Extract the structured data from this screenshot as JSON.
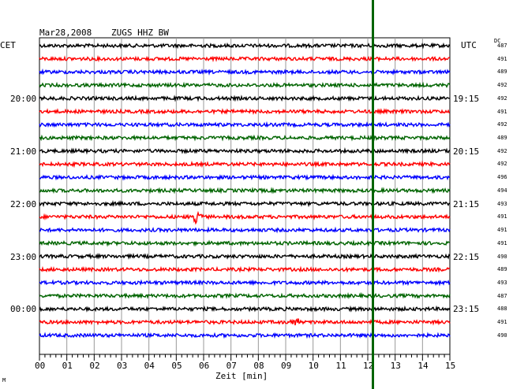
{
  "header": {
    "date": "Mar28,2008",
    "station": "ZUGS HHZ BW",
    "left_tz": "CET",
    "right_tz": "UTC",
    "dc_label": "DC",
    "corner_mark": "M"
  },
  "chart_data": {
    "type": "line",
    "title": "Mar28,2008   ZUGS HHZ BW",
    "xlabel": "Zeit [min]",
    "x_range": [
      0,
      15
    ],
    "x_ticks": [
      "00",
      "01",
      "02",
      "03",
      "04",
      "05",
      "06",
      "07",
      "08",
      "09",
      "10",
      "11",
      "12",
      "13",
      "14",
      "15"
    ],
    "trace_colors": [
      "#000000",
      "#ff0000",
      "#0000ff",
      "#006400"
    ],
    "rows_per_hour": 4,
    "row_count": 23,
    "left_time_labels": [
      {
        "row": 4,
        "label": "20:00"
      },
      {
        "row": 8,
        "label": "21:00"
      },
      {
        "row": 12,
        "label": "22:00"
      },
      {
        "row": 16,
        "label": "23:00"
      },
      {
        "row": 20,
        "label": "00:00"
      }
    ],
    "right_time_labels": [
      {
        "row": 4,
        "label": "19:15"
      },
      {
        "row": 8,
        "label": "20:15"
      },
      {
        "row": 12,
        "label": "21:15"
      },
      {
        "row": 16,
        "label": "22:15"
      },
      {
        "row": 20,
        "label": "23:15"
      }
    ],
    "dc_values": [
      "487",
      "491",
      "489",
      "492",
      "492",
      "491",
      "492",
      "489",
      "492",
      "492",
      "496",
      "494",
      "493",
      "491",
      "491",
      "491",
      "490",
      "489",
      "493",
      "487",
      "488",
      "491",
      "490"
    ],
    "events": [
      {
        "row": 13,
        "minute": 5.75,
        "amplitude": "large"
      },
      {
        "row": 21,
        "minute": 9.3,
        "amplitude": "medium"
      }
    ],
    "marker_line_minute": 12.2,
    "grid": true
  }
}
